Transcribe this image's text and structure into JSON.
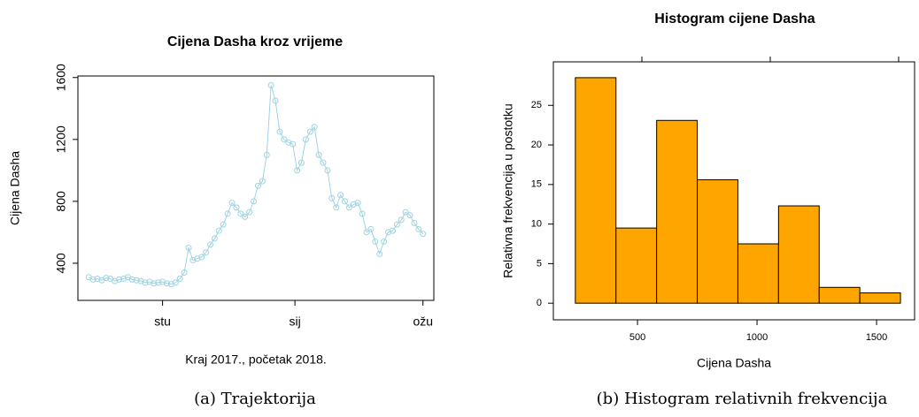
{
  "chart_data": [
    {
      "type": "line",
      "title": "Cijena Dasha kroz vrijeme",
      "xlabel": "Kraj 2017., početak 2018.",
      "ylabel": "Cijena Dasha",
      "caption": "(a) Trajektorija",
      "x": [
        -34,
        -32,
        -30,
        -28,
        -26,
        -24,
        -22,
        -20,
        -18,
        -16,
        -14,
        -12,
        -10,
        -8,
        -6,
        -4,
        -2,
        0,
        2,
        4,
        6,
        8,
        10,
        12,
        14,
        16,
        18,
        20,
        22,
        24,
        26,
        28,
        30,
        32,
        34,
        36,
        38,
        40,
        42,
        44,
        46,
        48,
        50,
        52,
        54,
        56,
        58,
        60,
        62,
        64,
        66,
        68,
        70,
        72,
        74,
        76,
        78,
        80,
        82,
        84,
        86,
        88,
        90,
        92,
        94,
        96,
        98,
        100,
        102,
        104,
        106,
        108,
        110,
        112,
        114,
        116,
        118,
        120
      ],
      "series": [
        {
          "name": "Cijena Dasha",
          "color": "#9fd3e3",
          "values": [
            310,
            295,
            300,
            290,
            305,
            300,
            285,
            295,
            300,
            310,
            295,
            290,
            285,
            275,
            280,
            270,
            275,
            280,
            270,
            265,
            275,
            300,
            340,
            500,
            420,
            430,
            440,
            470,
            520,
            560,
            610,
            650,
            720,
            790,
            760,
            720,
            700,
            730,
            800,
            900,
            930,
            1100,
            1550,
            1450,
            1250,
            1200,
            1180,
            1170,
            1000,
            1050,
            1200,
            1250,
            1280,
            1100,
            1050,
            1000,
            820,
            760,
            840,
            800,
            760,
            780,
            790,
            720,
            600,
            620,
            540,
            460,
            540,
            600,
            610,
            650,
            680,
            730,
            710,
            660,
            620,
            590
          ]
        }
      ],
      "xlim": [
        -39,
        125
      ],
      "xticks": [
        {
          "value": 0,
          "label": "stu"
        },
        {
          "value": 61,
          "label": "sij"
        },
        {
          "value": 120,
          "label": "ožu"
        }
      ],
      "ylim": [
        160,
        1610
      ],
      "yticks": [
        400,
        800,
        1200,
        1600
      ]
    },
    {
      "type": "histogram",
      "title": "Histogram cijene Dasha",
      "xlabel": "Cijena Dasha",
      "ylabel": "Relativna frekvencija u postotku",
      "caption": "(b) Histogram relativnih frekvencija",
      "bins": [
        240,
        410,
        580,
        750,
        920,
        1090,
        1260,
        1430,
        1600
      ],
      "values": [
        28.5,
        9.5,
        23.1,
        15.6,
        7.5,
        12.3,
        2.0,
        1.3
      ],
      "color": "#ffa500",
      "xlim": [
        148,
        1659
      ],
      "xticks": [
        500,
        1000,
        1500
      ],
      "ylim": [
        -2.1,
        30.5
      ],
      "yticks": [
        0,
        5,
        10,
        15,
        20,
        25
      ]
    }
  ]
}
